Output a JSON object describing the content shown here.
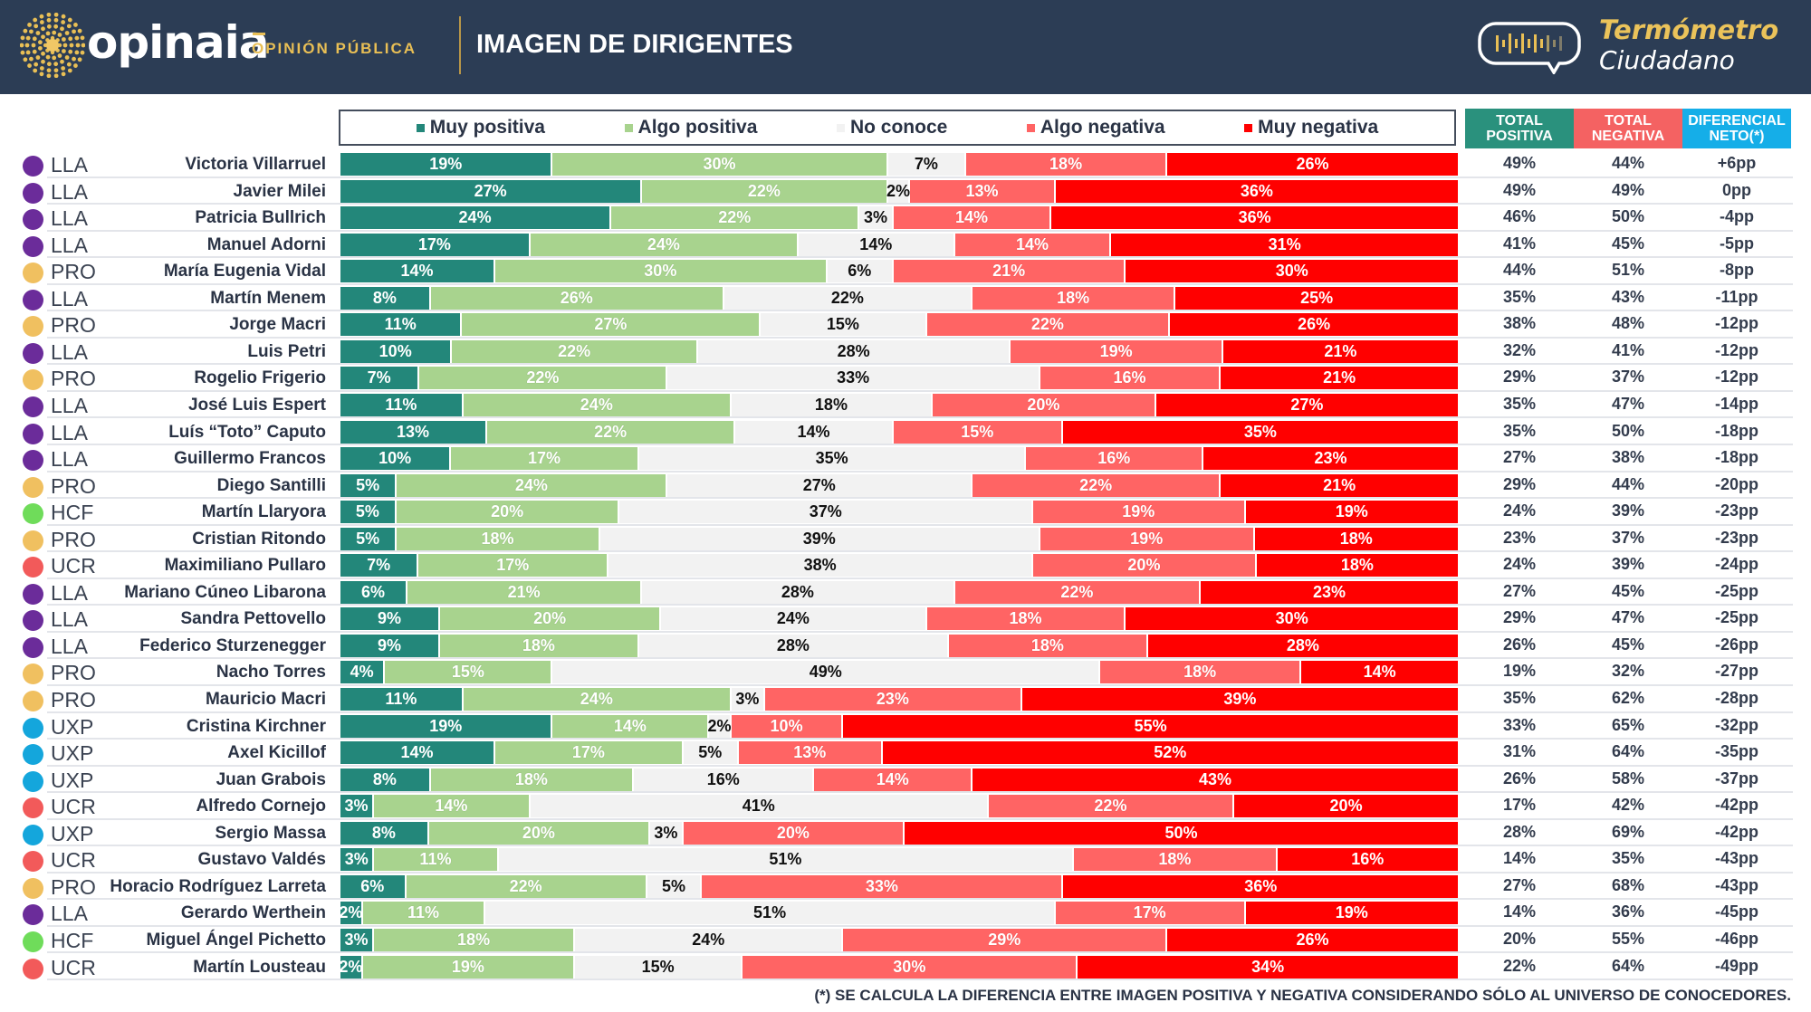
{
  "header": {
    "brand": "opinaia",
    "brand_sub": "OPINIÓN PÚBLICA",
    "title": "IMAGEN DE DIRIGENTES",
    "badge_title": "Termómetro",
    "badge_sub": "Ciudadano",
    "colors": {
      "background": "#2c3d55",
      "accent": "#e9bf55"
    }
  },
  "columns": {
    "total_positiva": "TOTAL POSITIVA",
    "total_negativa": "TOTAL NEGATIVA",
    "diferencial": "DIFERENCIAL NETO(*)",
    "colors": {
      "total_positiva": "#2a917d",
      "total_negativa": "#f46262",
      "diferencial": "#15aee8"
    }
  },
  "party_colors": {
    "LLA": "#6b2c9a",
    "PRO": "#f0c060",
    "HCF": "#6fdc5a",
    "UCR": "#f25a5a",
    "UXP": "#14a6dc"
  },
  "footnote": "(*) SE CALCULA LA DIFERENCIA ENTRE IMAGEN POSITIVA Y NEGATIVA CONSIDERANDO SÓLO AL UNIVERSO DE CONOCEDORES.",
  "chart_data": {
    "type": "bar",
    "orientation": "horizontal-stacked-100",
    "title": "IMAGEN DE DIRIGENTES",
    "xlabel": "",
    "ylabel": "",
    "xlim": [
      0,
      100
    ],
    "legend_position": "top",
    "series": [
      {
        "name": "Muy positiva",
        "color": "#23877a"
      },
      {
        "name": "Algo positiva",
        "color": "#a8d38e"
      },
      {
        "name": "No conoce",
        "color": "#f2f2f2"
      },
      {
        "name": "Algo negativa",
        "color": "#ff6464"
      },
      {
        "name": "Muy negativa",
        "color": "#ff0000"
      }
    ],
    "rows": [
      {
        "party": "LLA",
        "name": "Victoria Villarruel",
        "values": [
          19,
          30,
          7,
          18,
          26
        ],
        "total_pos": "49%",
        "total_neg": "44%",
        "diff": "+6pp"
      },
      {
        "party": "LLA",
        "name": "Javier Milei",
        "values": [
          27,
          22,
          2,
          13,
          36
        ],
        "total_pos": "49%",
        "total_neg": "49%",
        "diff": "0pp"
      },
      {
        "party": "LLA",
        "name": "Patricia Bullrich",
        "values": [
          24,
          22,
          3,
          14,
          36
        ],
        "total_pos": "46%",
        "total_neg": "50%",
        "diff": "-4pp"
      },
      {
        "party": "LLA",
        "name": "Manuel Adorni",
        "values": [
          17,
          24,
          14,
          14,
          31
        ],
        "total_pos": "41%",
        "total_neg": "45%",
        "diff": "-5pp"
      },
      {
        "party": "PRO",
        "name": "María Eugenia Vidal",
        "values": [
          14,
          30,
          6,
          21,
          30
        ],
        "total_pos": "44%",
        "total_neg": "51%",
        "diff": "-8pp"
      },
      {
        "party": "LLA",
        "name": "Martín Menem",
        "values": [
          8,
          26,
          22,
          18,
          25
        ],
        "total_pos": "35%",
        "total_neg": "43%",
        "diff": "-11pp"
      },
      {
        "party": "PRO",
        "name": "Jorge Macri",
        "values": [
          11,
          27,
          15,
          22,
          26
        ],
        "total_pos": "38%",
        "total_neg": "48%",
        "diff": "-12pp"
      },
      {
        "party": "LLA",
        "name": "Luis Petri",
        "values": [
          10,
          22,
          28,
          19,
          21
        ],
        "total_pos": "32%",
        "total_neg": "41%",
        "diff": "-12pp"
      },
      {
        "party": "PRO",
        "name": "Rogelio Frigerio",
        "values": [
          7,
          22,
          33,
          16,
          21
        ],
        "total_pos": "29%",
        "total_neg": "37%",
        "diff": "-12pp"
      },
      {
        "party": "LLA",
        "name": "José Luis Espert",
        "values": [
          11,
          24,
          18,
          20,
          27
        ],
        "total_pos": "35%",
        "total_neg": "47%",
        "diff": "-14pp"
      },
      {
        "party": "LLA",
        "name": "Luís “Toto” Caputo",
        "values": [
          13,
          22,
          14,
          15,
          35
        ],
        "total_pos": "35%",
        "total_neg": "50%",
        "diff": "-18pp"
      },
      {
        "party": "LLA",
        "name": "Guillermo Francos",
        "values": [
          10,
          17,
          35,
          16,
          23
        ],
        "total_pos": "27%",
        "total_neg": "38%",
        "diff": "-18pp"
      },
      {
        "party": "PRO",
        "name": "Diego Santilli",
        "values": [
          5,
          24,
          27,
          22,
          21
        ],
        "total_pos": "29%",
        "total_neg": "44%",
        "diff": "-20pp"
      },
      {
        "party": "HCF",
        "name": "Martín Llaryora",
        "values": [
          5,
          20,
          37,
          19,
          19
        ],
        "total_pos": "24%",
        "total_neg": "39%",
        "diff": "-23pp"
      },
      {
        "party": "PRO",
        "name": "Cristian Ritondo",
        "values": [
          5,
          18,
          39,
          19,
          18
        ],
        "total_pos": "23%",
        "total_neg": "37%",
        "diff": "-23pp"
      },
      {
        "party": "UCR",
        "name": "Maximiliano Pullaro",
        "values": [
          7,
          17,
          38,
          20,
          18
        ],
        "total_pos": "24%",
        "total_neg": "39%",
        "diff": "-24pp"
      },
      {
        "party": "LLA",
        "name": "Mariano Cúneo Libarona",
        "values": [
          6,
          21,
          28,
          22,
          23
        ],
        "total_pos": "27%",
        "total_neg": "45%",
        "diff": "-25pp"
      },
      {
        "party": "LLA",
        "name": "Sandra Pettovello",
        "values": [
          9,
          20,
          24,
          18,
          30
        ],
        "total_pos": "29%",
        "total_neg": "47%",
        "diff": "-25pp"
      },
      {
        "party": "LLA",
        "name": "Federico Sturzenegger",
        "values": [
          9,
          18,
          28,
          18,
          28
        ],
        "total_pos": "26%",
        "total_neg": "45%",
        "diff": "-26pp"
      },
      {
        "party": "PRO",
        "name": "Nacho Torres",
        "values": [
          4,
          15,
          49,
          18,
          14
        ],
        "total_pos": "19%",
        "total_neg": "32%",
        "diff": "-27pp"
      },
      {
        "party": "PRO",
        "name": "Mauricio Macri",
        "values": [
          11,
          24,
          3,
          23,
          39
        ],
        "total_pos": "35%",
        "total_neg": "62%",
        "diff": "-28pp"
      },
      {
        "party": "UXP",
        "name": "Cristina Kirchner",
        "values": [
          19,
          14,
          2,
          10,
          55
        ],
        "total_pos": "33%",
        "total_neg": "65%",
        "diff": "-32pp"
      },
      {
        "party": "UXP",
        "name": "Axel Kicillof",
        "values": [
          14,
          17,
          5,
          13,
          52
        ],
        "total_pos": "31%",
        "total_neg": "64%",
        "diff": "-35pp"
      },
      {
        "party": "UXP",
        "name": "Juan Grabois",
        "values": [
          8,
          18,
          16,
          14,
          43
        ],
        "total_pos": "26%",
        "total_neg": "58%",
        "diff": "-37pp"
      },
      {
        "party": "UCR",
        "name": "Alfredo Cornejo",
        "values": [
          3,
          14,
          41,
          22,
          20
        ],
        "total_pos": "17%",
        "total_neg": "42%",
        "diff": "-42pp"
      },
      {
        "party": "UXP",
        "name": "Sergio Massa",
        "values": [
          8,
          20,
          3,
          20,
          50
        ],
        "total_pos": "28%",
        "total_neg": "69%",
        "diff": "-42pp"
      },
      {
        "party": "UCR",
        "name": "Gustavo Valdés",
        "values": [
          3,
          11,
          51,
          18,
          16
        ],
        "total_pos": "14%",
        "total_neg": "35%",
        "diff": "-43pp"
      },
      {
        "party": "PRO",
        "name": "Horacio Rodríguez Larreta",
        "values": [
          6,
          22,
          5,
          33,
          36
        ],
        "total_pos": "27%",
        "total_neg": "68%",
        "diff": "-43pp"
      },
      {
        "party": "LLA",
        "name": "Gerardo Werthein",
        "values": [
          2,
          11,
          51,
          17,
          19
        ],
        "total_pos": "14%",
        "total_neg": "36%",
        "diff": "-45pp"
      },
      {
        "party": "HCF",
        "name": "Miguel Ángel Pichetto",
        "values": [
          3,
          18,
          24,
          29,
          26
        ],
        "total_pos": "20%",
        "total_neg": "55%",
        "diff": "-46pp"
      },
      {
        "party": "UCR",
        "name": "Martín Lousteau",
        "values": [
          2,
          19,
          15,
          30,
          34
        ],
        "total_pos": "22%",
        "total_neg": "64%",
        "diff": "-49pp"
      }
    ]
  }
}
